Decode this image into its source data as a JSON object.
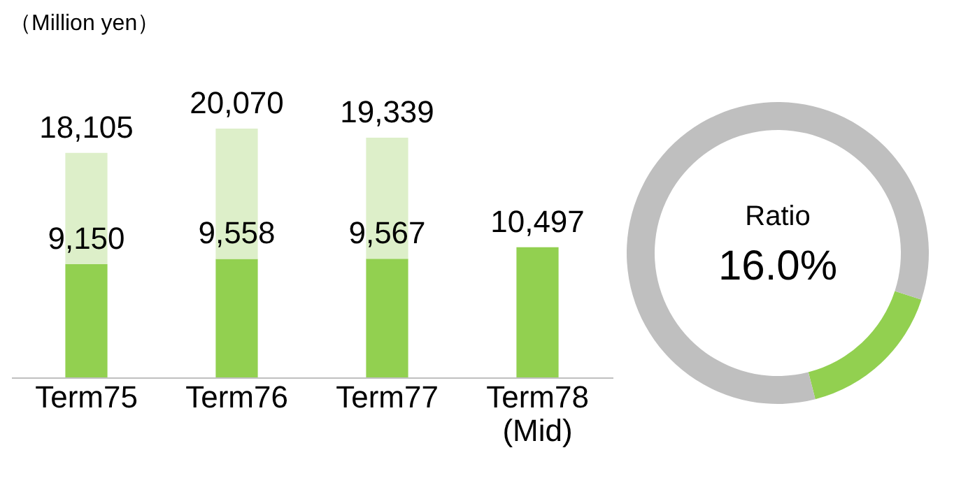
{
  "chart_data": [
    {
      "type": "bar",
      "ylabel": "（Million yen）",
      "categories": [
        "Term75",
        "Term76",
        "Term77",
        "Term78\n(Mid)"
      ],
      "stacked": true,
      "series": [
        {
          "color": "#92d050",
          "values": [
            9150,
            9558,
            9567,
            10497
          ],
          "value_labels": [
            "9,150",
            "9,558",
            "9,567",
            "10,497"
          ]
        },
        {
          "color": "#ddefc9",
          "values": [
            8955,
            10512,
            9772,
            null
          ]
        }
      ],
      "totals": [
        "18,105",
        "20,070",
        "19,339",
        null
      ],
      "tick_labels": "x",
      "grid": false
    },
    {
      "type": "donut",
      "categories": [
        null,
        null
      ],
      "values": [
        16.0,
        84.0
      ],
      "colors": [
        "#92d050",
        "#bfbfbf"
      ],
      "annotations": [
        "Ratio",
        "16.0%"
      ]
    }
  ]
}
